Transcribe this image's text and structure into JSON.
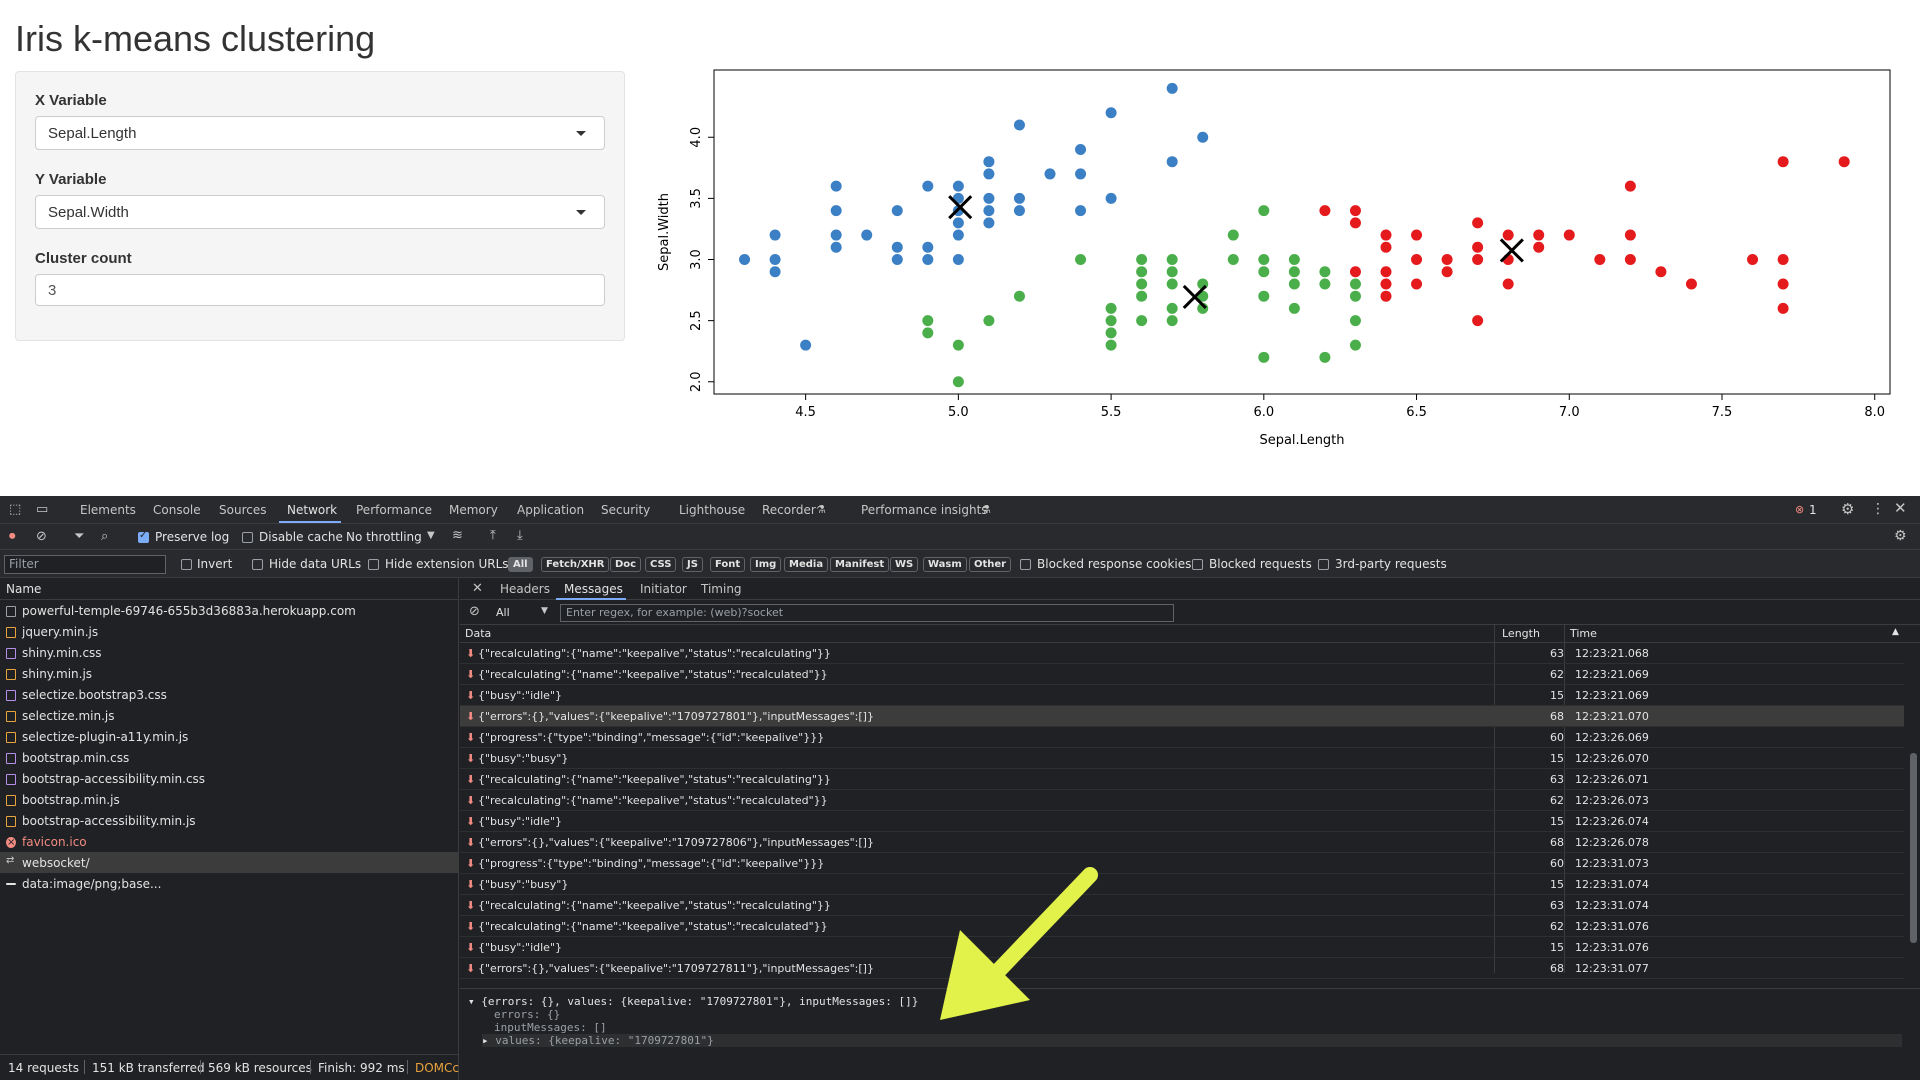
{
  "app": {
    "title": "Iris k-means clustering",
    "x_variable": {
      "label": "X Variable",
      "value": "Sepal.Length"
    },
    "y_variable": {
      "label": "Y Variable",
      "value": "Sepal.Width"
    },
    "cluster_count": {
      "label": "Cluster count",
      "value": "3"
    }
  },
  "chart_data": {
    "type": "scatter",
    "xlabel": "Sepal.Length",
    "ylabel": "Sepal.Width",
    "xlim": [
      4.2,
      8.05
    ],
    "ylim": [
      1.9,
      4.55
    ],
    "xticks": [
      "4.5",
      "5.0",
      "5.5",
      "6.0",
      "6.5",
      "7.0",
      "7.5",
      "8.0"
    ],
    "yticks": [
      "2.0",
      "2.5",
      "3.0",
      "3.5",
      "4.0"
    ],
    "series": [
      {
        "color": "#3b7fc4",
        "points": [
          [
            4.3,
            3.0
          ],
          [
            4.4,
            2.9
          ],
          [
            4.4,
            3.0
          ],
          [
            4.4,
            3.2
          ],
          [
            4.5,
            2.3
          ],
          [
            4.6,
            3.1
          ],
          [
            4.6,
            3.2
          ],
          [
            4.6,
            3.4
          ],
          [
            4.6,
            3.6
          ],
          [
            4.7,
            3.2
          ],
          [
            4.8,
            3.0
          ],
          [
            4.8,
            3.1
          ],
          [
            4.8,
            3.4
          ],
          [
            4.9,
            3.0
          ],
          [
            4.9,
            3.1
          ],
          [
            4.9,
            3.6
          ],
          [
            5.0,
            3.0
          ],
          [
            5.0,
            3.2
          ],
          [
            5.0,
            3.3
          ],
          [
            5.0,
            3.4
          ],
          [
            5.0,
            3.5
          ],
          [
            5.0,
            3.6
          ],
          [
            5.1,
            3.3
          ],
          [
            5.1,
            3.4
          ],
          [
            5.1,
            3.5
          ],
          [
            5.1,
            3.7
          ],
          [
            5.1,
            3.8
          ],
          [
            5.2,
            3.4
          ],
          [
            5.2,
            3.5
          ],
          [
            5.2,
            4.1
          ],
          [
            5.3,
            3.7
          ],
          [
            5.4,
            3.4
          ],
          [
            5.4,
            3.7
          ],
          [
            5.4,
            3.9
          ],
          [
            5.5,
            3.5
          ],
          [
            5.5,
            4.2
          ],
          [
            5.7,
            3.8
          ],
          [
            5.7,
            4.4
          ],
          [
            5.8,
            4.0
          ]
        ]
      },
      {
        "color": "#4aaf4a",
        "points": [
          [
            4.9,
            2.4
          ],
          [
            4.9,
            2.5
          ],
          [
            5.0,
            2.0
          ],
          [
            5.0,
            2.3
          ],
          [
            5.1,
            2.5
          ],
          [
            5.2,
            2.7
          ],
          [
            5.4,
            3.0
          ],
          [
            5.5,
            2.3
          ],
          [
            5.5,
            2.4
          ],
          [
            5.5,
            2.5
          ],
          [
            5.5,
            2.6
          ],
          [
            5.6,
            2.5
          ],
          [
            5.6,
            2.7
          ],
          [
            5.6,
            2.8
          ],
          [
            5.6,
            2.9
          ],
          [
            5.6,
            3.0
          ],
          [
            5.7,
            2.5
          ],
          [
            5.7,
            2.6
          ],
          [
            5.7,
            2.8
          ],
          [
            5.7,
            2.9
          ],
          [
            5.7,
            3.0
          ],
          [
            5.8,
            2.6
          ],
          [
            5.8,
            2.7
          ],
          [
            5.8,
            2.8
          ],
          [
            5.9,
            3.0
          ],
          [
            5.9,
            3.2
          ],
          [
            6.0,
            2.2
          ],
          [
            6.0,
            2.7
          ],
          [
            6.0,
            2.9
          ],
          [
            6.0,
            3.0
          ],
          [
            6.0,
            3.4
          ],
          [
            6.1,
            2.6
          ],
          [
            6.1,
            2.8
          ],
          [
            6.1,
            2.9
          ],
          [
            6.1,
            3.0
          ],
          [
            6.2,
            2.2
          ],
          [
            6.2,
            2.8
          ],
          [
            6.2,
            2.9
          ],
          [
            6.3,
            2.3
          ],
          [
            6.3,
            2.5
          ],
          [
            6.3,
            2.7
          ],
          [
            6.3,
            2.8
          ]
        ]
      },
      {
        "color": "#e41a1c",
        "points": [
          [
            6.2,
            3.4
          ],
          [
            6.3,
            2.9
          ],
          [
            6.3,
            3.3
          ],
          [
            6.3,
            3.4
          ],
          [
            6.4,
            2.7
          ],
          [
            6.4,
            2.8
          ],
          [
            6.4,
            2.9
          ],
          [
            6.4,
            3.1
          ],
          [
            6.4,
            3.2
          ],
          [
            6.5,
            2.8
          ],
          [
            6.5,
            3.0
          ],
          [
            6.5,
            3.2
          ],
          [
            6.6,
            2.9
          ],
          [
            6.6,
            3.0
          ],
          [
            6.7,
            2.5
          ],
          [
            6.7,
            3.0
          ],
          [
            6.7,
            3.1
          ],
          [
            6.7,
            3.3
          ],
          [
            6.8,
            2.8
          ],
          [
            6.8,
            3.0
          ],
          [
            6.8,
            3.2
          ],
          [
            6.9,
            3.1
          ],
          [
            6.9,
            3.2
          ],
          [
            7.0,
            3.2
          ],
          [
            7.1,
            3.0
          ],
          [
            7.2,
            3.0
          ],
          [
            7.2,
            3.2
          ],
          [
            7.2,
            3.6
          ],
          [
            7.3,
            2.9
          ],
          [
            7.4,
            2.8
          ],
          [
            7.6,
            3.0
          ],
          [
            7.7,
            2.6
          ],
          [
            7.7,
            2.8
          ],
          [
            7.7,
            3.0
          ],
          [
            7.7,
            3.8
          ],
          [
            7.9,
            3.8
          ]
        ]
      }
    ],
    "centers": [
      [
        5.006,
        3.428
      ],
      [
        5.774,
        2.694
      ],
      [
        6.812,
        3.074
      ]
    ]
  },
  "devtools": {
    "tabs": [
      "Elements",
      "Console",
      "Sources",
      "Network",
      "Performance",
      "Memory",
      "Application",
      "Security",
      "Lighthouse",
      "Recorder",
      "Performance insights"
    ],
    "active_tab": "Network",
    "error_count": "1",
    "toolbar": {
      "preserve_log": "Preserve log",
      "disable_cache": "Disable cache",
      "throttling": "No throttling"
    },
    "filter": {
      "placeholder": "Filter",
      "invert": "Invert",
      "hide_data_urls": "Hide data URLs",
      "hide_extension_urls": "Hide extension URLs",
      "types": [
        "All",
        "Fetch/XHR",
        "Doc",
        "CSS",
        "JS",
        "Font",
        "Img",
        "Media",
        "Manifest",
        "WS",
        "Wasm",
        "Other"
      ],
      "blocked_cookies": "Blocked response cookies",
      "blocked_requests": "Blocked requests",
      "third_party": "3rd-party requests"
    },
    "requests_header": "Name",
    "requests": [
      {
        "name": "powerful-temple-69746-655b3d36883a.herokuapp.com",
        "kind": "doc"
      },
      {
        "name": "jquery.min.js",
        "kind": "js"
      },
      {
        "name": "shiny.min.css",
        "kind": "css"
      },
      {
        "name": "shiny.min.js",
        "kind": "js"
      },
      {
        "name": "selectize.bootstrap3.css",
        "kind": "css"
      },
      {
        "name": "selectize.min.js",
        "kind": "js"
      },
      {
        "name": "selectize-plugin-a11y.min.js",
        "kind": "js"
      },
      {
        "name": "bootstrap.min.css",
        "kind": "css"
      },
      {
        "name": "bootstrap-accessibility.min.css",
        "kind": "css"
      },
      {
        "name": "bootstrap.min.js",
        "kind": "js"
      },
      {
        "name": "bootstrap-accessibility.min.js",
        "kind": "js"
      },
      {
        "name": "favicon.ico",
        "kind": "err"
      },
      {
        "name": "websocket/",
        "kind": "ws"
      },
      {
        "name": "data:image/png;base...",
        "kind": "img"
      }
    ],
    "detail_tabs": [
      "Headers",
      "Messages",
      "Initiator",
      "Timing"
    ],
    "messages_filter": {
      "type": "All",
      "placeholder": "Enter regex, for example: (web)?socket"
    },
    "columns": {
      "data": "Data",
      "length": "Length",
      "time": "Time"
    },
    "messages": [
      {
        "data": "{\"recalculating\":{\"name\":\"keepalive\",\"status\":\"recalculating\"}}",
        "length": "63",
        "time": "12:23:21.068"
      },
      {
        "data": "{\"recalculating\":{\"name\":\"keepalive\",\"status\":\"recalculated\"}}",
        "length": "62",
        "time": "12:23:21.069"
      },
      {
        "data": "{\"busy\":\"idle\"}",
        "length": "15",
        "time": "12:23:21.069"
      },
      {
        "data": "{\"errors\":{},\"values\":{\"keepalive\":\"1709727801\"},\"inputMessages\":[]}",
        "length": "68",
        "time": "12:23:21.070"
      },
      {
        "data": "{\"progress\":{\"type\":\"binding\",\"message\":{\"id\":\"keepalive\"}}}",
        "length": "60",
        "time": "12:23:26.069"
      },
      {
        "data": "{\"busy\":\"busy\"}",
        "length": "15",
        "time": "12:23:26.070"
      },
      {
        "data": "{\"recalculating\":{\"name\":\"keepalive\",\"status\":\"recalculating\"}}",
        "length": "63",
        "time": "12:23:26.071"
      },
      {
        "data": "{\"recalculating\":{\"name\":\"keepalive\",\"status\":\"recalculated\"}}",
        "length": "62",
        "time": "12:23:26.073"
      },
      {
        "data": "{\"busy\":\"idle\"}",
        "length": "15",
        "time": "12:23:26.074"
      },
      {
        "data": "{\"errors\":{},\"values\":{\"keepalive\":\"1709727806\"},\"inputMessages\":[]}",
        "length": "68",
        "time": "12:23:26.078"
      },
      {
        "data": "{\"progress\":{\"type\":\"binding\",\"message\":{\"id\":\"keepalive\"}}}",
        "length": "60",
        "time": "12:23:31.073"
      },
      {
        "data": "{\"busy\":\"busy\"}",
        "length": "15",
        "time": "12:23:31.074"
      },
      {
        "data": "{\"recalculating\":{\"name\":\"keepalive\",\"status\":\"recalculating\"}}",
        "length": "63",
        "time": "12:23:31.074"
      },
      {
        "data": "{\"recalculating\":{\"name\":\"keepalive\",\"status\":\"recalculated\"}}",
        "length": "62",
        "time": "12:23:31.076"
      },
      {
        "data": "{\"busy\":\"idle\"}",
        "length": "15",
        "time": "12:23:31.076"
      },
      {
        "data": "{\"errors\":{},\"values\":{\"keepalive\":\"1709727811\"},\"inputMessages\":[]}",
        "length": "68",
        "time": "12:23:31.077"
      }
    ],
    "selected_message_detail": {
      "summary": "{errors: {}, values: {keepalive: \"1709727801\"}, inputMessages: []}",
      "errors": "errors: {}",
      "input_messages": "inputMessages: []",
      "values": "values: {keepalive: \"1709727801\"}"
    },
    "status": {
      "requests": "14 requests",
      "transferred": "151 kB transferred",
      "resources": "569 kB resources",
      "finish": "Finish: 992 ms",
      "domcontent": "DOMCc"
    }
  }
}
